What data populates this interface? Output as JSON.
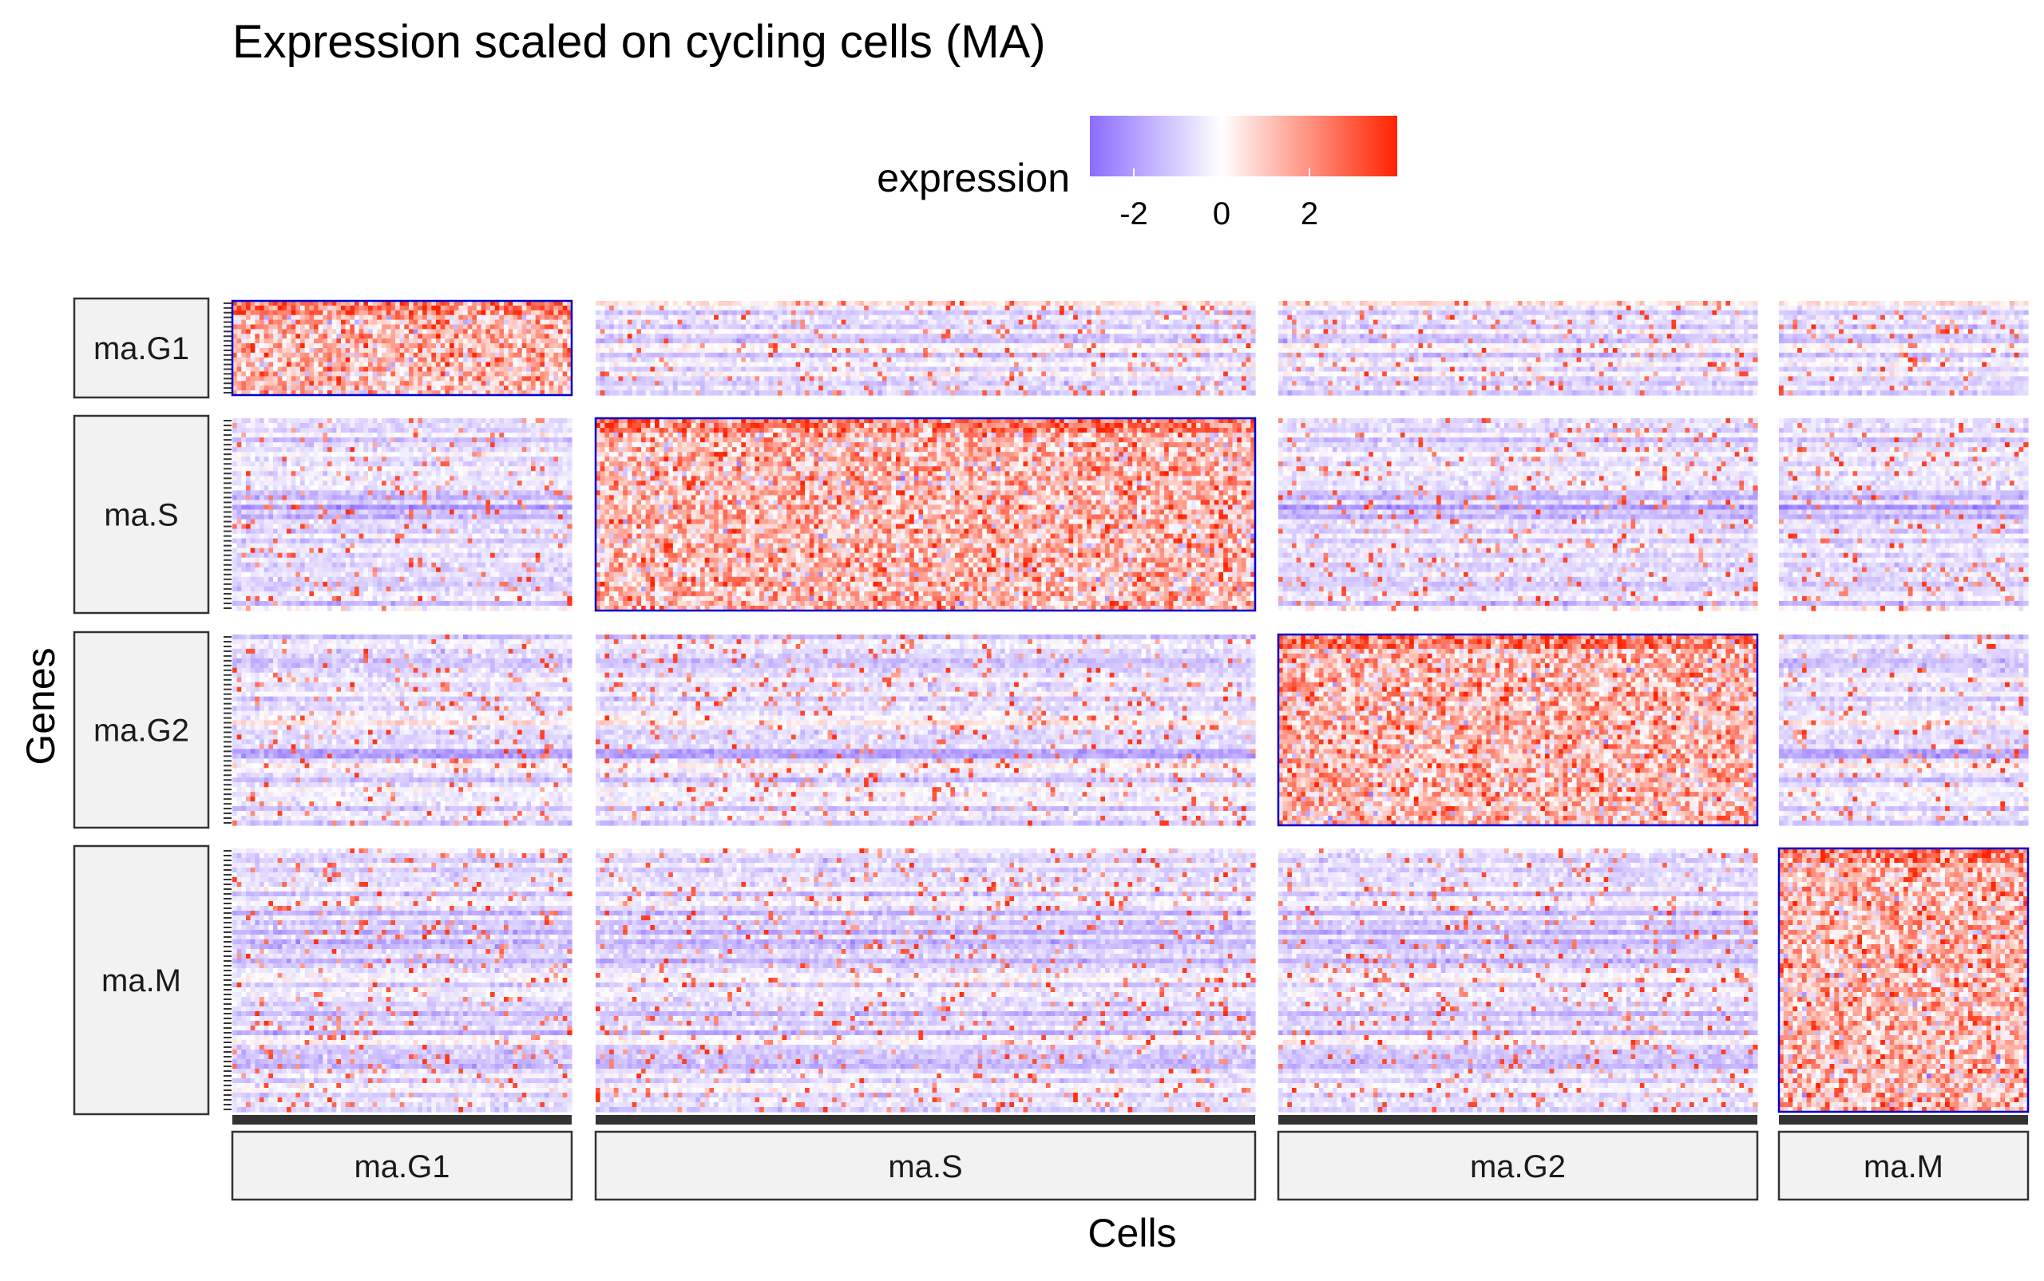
{
  "chart_data": {
    "type": "heatmap",
    "title": "Expression scaled on cycling cells (MA)",
    "xlabel": "Cells",
    "ylabel": "Genes",
    "legend": {
      "title": "expression",
      "placement": "top",
      "ticks": [
        -2,
        0,
        2
      ],
      "range": [
        -3,
        4
      ],
      "colors": {
        "low": "#8c6cff",
        "mid": "#ffffff",
        "high": "#ff2200"
      }
    },
    "cell_groups": [
      {
        "label": "ma.G1",
        "cells": 75
      },
      {
        "label": "ma.S",
        "cells": 145
      },
      {
        "label": "ma.G2",
        "cells": 106
      },
      {
        "label": "ma.M",
        "cells": 54
      }
    ],
    "gene_groups": [
      {
        "label": "ma.G1",
        "genes": 20
      },
      {
        "label": "ma.S",
        "genes": 40
      },
      {
        "label": "ma.G2",
        "genes": 40
      },
      {
        "label": "ma.M",
        "genes": 55
      }
    ],
    "highlight_color": "#0000cc",
    "highlighted_blocks": [
      {
        "gene_group": "ma.G1",
        "cell_group": "ma.G1"
      },
      {
        "gene_group": "ma.S",
        "cell_group": "ma.S"
      },
      {
        "gene_group": "ma.G2",
        "cell_group": "ma.G2"
      },
      {
        "gene_group": "ma.M",
        "cell_group": "ma.M"
      }
    ]
  }
}
